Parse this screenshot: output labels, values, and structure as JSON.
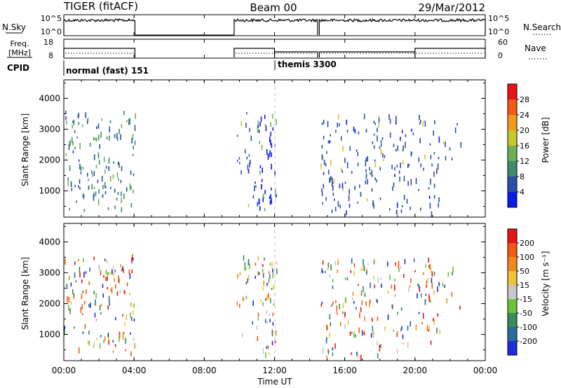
{
  "header": {
    "station": "TIGER (fitACF)",
    "beam": "Beam 00",
    "date": "29/Mar/2012"
  },
  "top_panels": {
    "nsky": {
      "label": "N.Sky",
      "right_label": "N.Search",
      "left_ticks": [
        "10^5",
        "10^0"
      ],
      "right_ticks": [
        "10^5",
        "10^0"
      ]
    },
    "freq": {
      "label_line1": "Freq.",
      "label_line2": "[MHz]",
      "right_label": "Nave",
      "left_ticks": [
        "18",
        "8"
      ],
      "right_ticks": [
        "60",
        "0"
      ]
    },
    "cpid": {
      "label": "CPID",
      "modes": [
        {
          "text": "normal (fast) 151"
        },
        {
          "text": "themis 3300"
        }
      ]
    }
  },
  "chart_data": [
    {
      "type": "heatmap",
      "quantity": "Power",
      "ylabel": "Slant Range [km]",
      "yticks": [
        1000,
        2000,
        3000,
        4000
      ],
      "ylim": [
        150,
        4600
      ],
      "colorbar": {
        "label": "Power [dB]",
        "ticks": [
          "4",
          "8",
          "12",
          "16",
          "20",
          "24",
          "28"
        ],
        "colors": [
          "#0a1be8",
          "#2a4fa8",
          "#3d8c6c",
          "#6db05a",
          "#c9c82a",
          "#f29a1a",
          "#f25a12",
          "#e81414"
        ]
      }
    },
    {
      "type": "heatmap",
      "quantity": "Velocity",
      "ylabel": "Slant Range [km]",
      "yticks": [
        1000,
        2000,
        3000,
        4000
      ],
      "ylim": [
        150,
        4600
      ],
      "colorbar": {
        "label": "Velocity [m s⁻¹]",
        "ticks": [
          "200",
          "100",
          "50",
          "15",
          "-15",
          "-50",
          "-100",
          "-200"
        ],
        "colors": [
          "#1a2fd8",
          "#2a6aa0",
          "#3a8a5a",
          "#6cc23a",
          "#c8c8c8",
          "#f2c23a",
          "#f28a1a",
          "#f25a12",
          "#e81414"
        ]
      }
    }
  ],
  "xaxis": {
    "label": "Time UT",
    "ticks": [
      "00:00",
      "04:00",
      "08:00",
      "12:00",
      "16:00",
      "20:00",
      "00:00"
    ]
  }
}
